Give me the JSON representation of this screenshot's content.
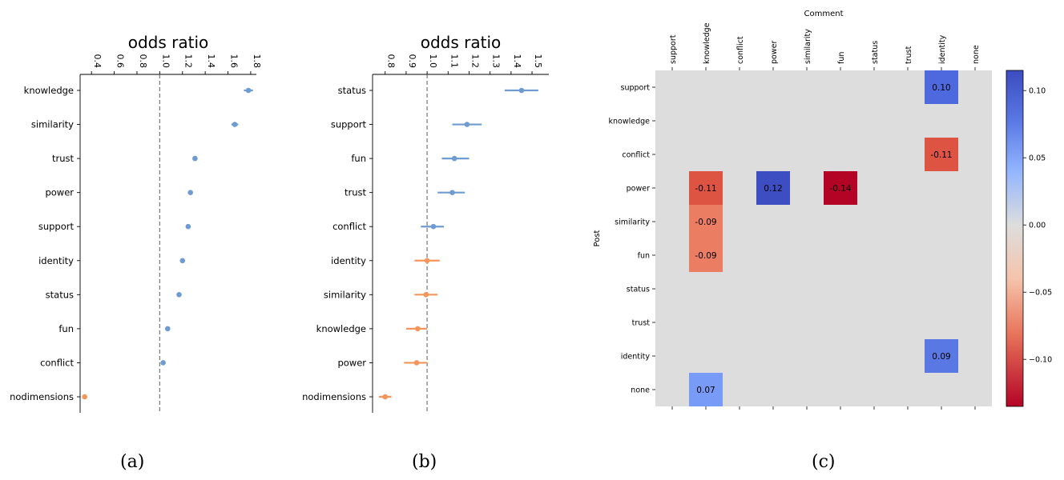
{
  "chart_data": [
    {
      "type": "scatter",
      "panel": "a",
      "caption": "(a)",
      "title": "odds ratio",
      "xlabel": "",
      "ylabel": "",
      "xlim": [
        0.3,
        1.85
      ],
      "xticks": [
        0.4,
        0.6,
        0.8,
        1.0,
        1.2,
        1.4,
        1.6,
        1.8
      ],
      "xtick_labels": [
        "0.4",
        "0.6",
        "0.8",
        "1.0",
        "1.2",
        "1.4",
        "1.6",
        "1.8"
      ],
      "reference_line": 1.0,
      "categories": [
        "knowledge",
        "similarity",
        "trust",
        "power",
        "support",
        "identity",
        "status",
        "fun",
        "conflict",
        "nodimensions"
      ],
      "values": [
        1.78,
        1.66,
        1.31,
        1.27,
        1.25,
        1.2,
        1.17,
        1.07,
        1.03,
        0.34
      ],
      "ci_low": [
        1.74,
        1.63,
        1.29,
        1.25,
        1.23,
        1.18,
        1.15,
        1.05,
        1.01,
        0.34
      ],
      "ci_high": [
        1.82,
        1.69,
        1.33,
        1.29,
        1.27,
        1.22,
        1.19,
        1.09,
        1.05,
        0.34
      ],
      "colors": [
        "#6f9cd0",
        "#6f9cd0",
        "#6f9cd0",
        "#6f9cd0",
        "#6f9cd0",
        "#6f9cd0",
        "#6f9cd0",
        "#6f9cd0",
        "#6f9cd0",
        "#f4965c"
      ]
    },
    {
      "type": "scatter",
      "panel": "b",
      "caption": "(b)",
      "title": "odds ratio",
      "xlabel": "",
      "ylabel": "",
      "xlim": [
        0.74,
        1.58
      ],
      "xticks": [
        0.8,
        0.9,
        1.0,
        1.1,
        1.2,
        1.3,
        1.4,
        1.5
      ],
      "xtick_labels": [
        "0.8",
        "0.9",
        "1.0",
        "1.1",
        "1.2",
        "1.3",
        "1.4",
        "1.5"
      ],
      "reference_line": 1.0,
      "categories": [
        "status",
        "support",
        "fun",
        "trust",
        "conflict",
        "identity",
        "similarity",
        "knowledge",
        "power",
        "nodimensions"
      ],
      "values": [
        1.45,
        1.19,
        1.13,
        1.12,
        1.03,
        1.0,
        0.995,
        0.955,
        0.95,
        0.8
      ],
      "ci_low": [
        1.37,
        1.12,
        1.07,
        1.05,
        0.97,
        0.94,
        0.94,
        0.9,
        0.89,
        0.77
      ],
      "ci_high": [
        1.53,
        1.26,
        1.2,
        1.18,
        1.08,
        1.06,
        1.05,
        1.0,
        1.0,
        0.83
      ],
      "colors": [
        "#6f9cd0",
        "#6f9cd0",
        "#6f9cd0",
        "#6f9cd0",
        "#6f9cd0",
        "#f4965c",
        "#f4965c",
        "#f4965c",
        "#f4965c",
        "#f4965c"
      ]
    },
    {
      "type": "heatmap",
      "panel": "c",
      "caption": "(c)",
      "xlabel": "Comment",
      "ylabel": "Post",
      "x": [
        "support",
        "knowledge",
        "conflict",
        "power",
        "similarity",
        "fun",
        "status",
        "trust",
        "identity",
        "none"
      ],
      "y": [
        "support",
        "knowledge",
        "conflict",
        "power",
        "similarity",
        "fun",
        "status",
        "trust",
        "identity",
        "none"
      ],
      "background_color": "#dddddd",
      "cells": [
        {
          "row": "support",
          "col": "identity",
          "value": 0.1,
          "label": "0.10"
        },
        {
          "row": "conflict",
          "col": "identity",
          "value": -0.11,
          "label": "-0.11"
        },
        {
          "row": "power",
          "col": "knowledge",
          "value": -0.11,
          "label": "-0.11"
        },
        {
          "row": "power",
          "col": "power",
          "value": 0.12,
          "label": "0.12"
        },
        {
          "row": "power",
          "col": "fun",
          "value": -0.14,
          "label": "-0.14"
        },
        {
          "row": "similarity",
          "col": "knowledge",
          "value": -0.09,
          "label": "-0.09"
        },
        {
          "row": "fun",
          "col": "knowledge",
          "value": -0.09,
          "label": "-0.09"
        },
        {
          "row": "identity",
          "col": "identity",
          "value": 0.09,
          "label": "0.09"
        },
        {
          "row": "none",
          "col": "knowledge",
          "value": 0.07,
          "label": "0.07"
        }
      ],
      "colormap": "coolwarm_r",
      "colorbar_range": [
        -0.135,
        0.115
      ],
      "colorbar_ticks": [
        0.1,
        0.05,
        0.0,
        -0.05,
        -0.1
      ],
      "colorbar_tick_labels": [
        "0.10",
        "0.05",
        "0.00",
        "−0.05",
        "−0.10"
      ]
    }
  ]
}
